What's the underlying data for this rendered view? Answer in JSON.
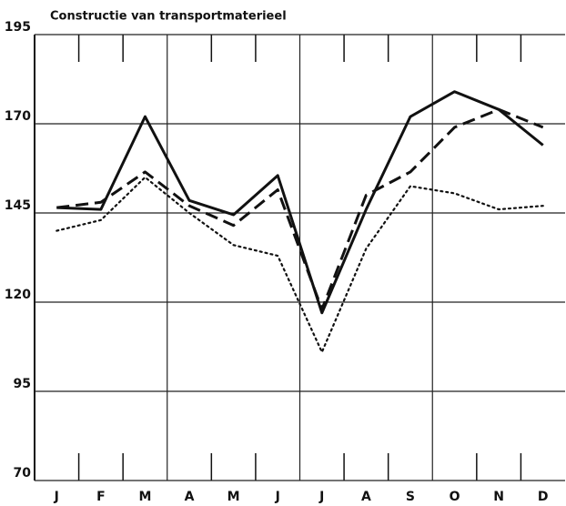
{
  "chart_data": {
    "type": "line",
    "title": "Constructie van transportmaterieel",
    "categories": [
      "J",
      "F",
      "M",
      "A",
      "M",
      "J",
      "J",
      "A",
      "S",
      "O",
      "N",
      "D"
    ],
    "series": [
      {
        "color": "#111111",
        "style": "solid",
        "values": [
          146.5,
          146,
          172,
          148.5,
          144.5,
          155.5,
          117,
          146,
          172,
          179,
          174,
          164
        ]
      },
      {
        "color": "#111111",
        "style": "dashed",
        "values": [
          146.5,
          148,
          156.5,
          147,
          141.5,
          151.5,
          118,
          150,
          156.5,
          169,
          174,
          169
        ]
      },
      {
        "color": "#111111",
        "style": "dotted",
        "values": [
          140,
          143,
          155,
          145,
          136,
          133,
          106,
          135,
          152.5,
          150.5,
          146,
          147
        ]
      }
    ],
    "ylim": [
      70,
      195
    ],
    "yticks": [
      70,
      95,
      120,
      145,
      170,
      195
    ],
    "grid": true
  }
}
